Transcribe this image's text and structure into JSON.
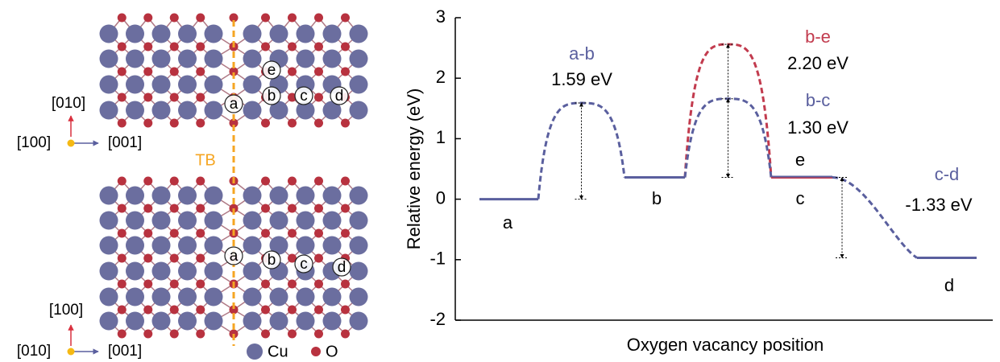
{
  "structure": {
    "top_axes": {
      "up": "[010]",
      "out": "[100]",
      "right": "[001]"
    },
    "bottom_axes": {
      "up": "[100]",
      "out": "[010]",
      "right": "[001]"
    },
    "boundary_label": "TB",
    "top_sites": [
      "a",
      "b",
      "c",
      "d",
      "e"
    ],
    "bottom_sites": [
      "a",
      "b",
      "c",
      "d"
    ],
    "legend": [
      "Cu",
      "O"
    ]
  },
  "chart_data": {
    "type": "energy-diagram",
    "y_label": "Relative energy (eV)",
    "x_label": "Oxygen vacancy position",
    "ylim": [
      -2,
      3
    ],
    "yticks": [
      -2,
      -1,
      0,
      1,
      2,
      3
    ],
    "states": {
      "names": [
        "a",
        "b",
        "c",
        "e",
        "d"
      ],
      "energies": [
        0,
        0.36,
        0.36,
        0.36,
        -0.97
      ],
      "colors": [
        "#5a5f9e",
        "#5a5f9e",
        "#5a5f9e",
        "#c23b4e",
        "#5a5f9e"
      ]
    },
    "barriers": {
      "names": [
        "a-b",
        "b-e",
        "b-c",
        "c-d"
      ],
      "values": [
        1.59,
        2.2,
        1.3,
        -1.33
      ],
      "value_labels": [
        "1.59 eV",
        "2.20 eV",
        "1.30 eV",
        "-1.33 eV"
      ],
      "colors": [
        "#5a5f9e",
        "#c23b4e",
        "#5a5f9e",
        "#5a5f9e"
      ]
    }
  }
}
